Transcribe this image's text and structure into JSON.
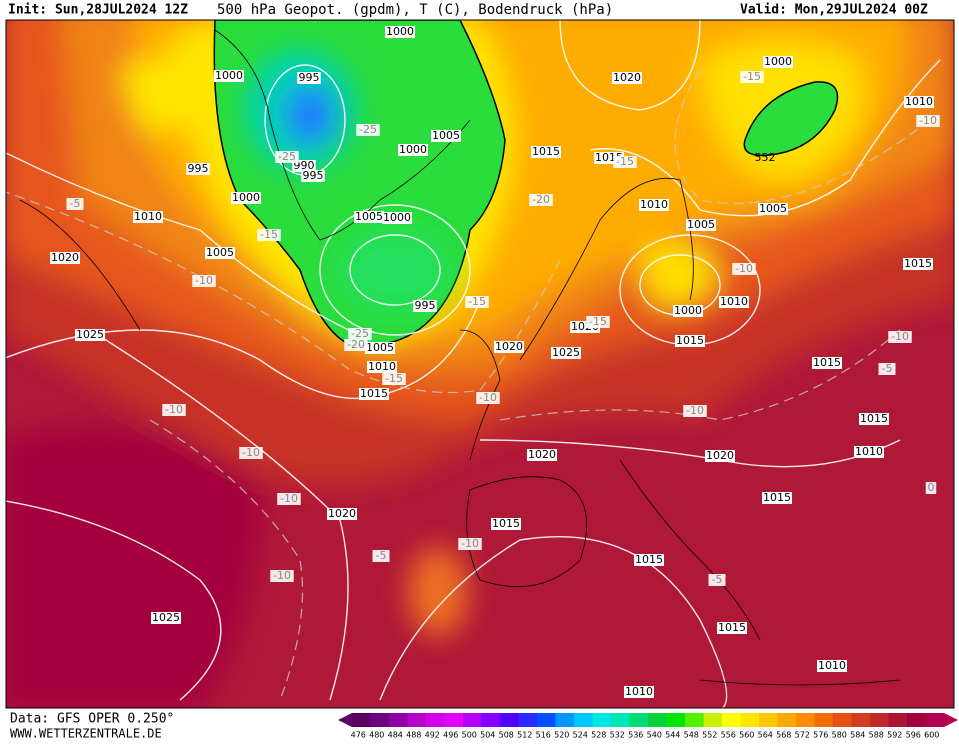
{
  "header": {
    "init": "Init: Sun,28JUL2024 12Z",
    "title": "500 hPa Geopot. (gpdm), T (C), Bodendruck (hPa)",
    "valid": "Valid: Mon,29JUL2024 00Z"
  },
  "isobar_labels": [
    "1000",
    "1000",
    "995",
    "1020",
    "1000",
    "1010",
    "1005",
    "1000",
    "1015",
    "1015",
    "995",
    "990",
    "995",
    "1000",
    "1010",
    "1005",
    "1000",
    "1010",
    "1005",
    "1005",
    "1005",
    "1020",
    "1015",
    "1010",
    "1000",
    "995",
    "1020",
    "1015",
    "1025",
    "1005",
    "1020",
    "1025",
    "1010",
    "1015",
    "1015",
    "1015",
    "1010",
    "1020",
    "1020",
    "1015",
    "1020",
    "1015",
    "1015",
    "1025",
    "1015",
    "1010",
    "1010"
  ],
  "geopotential_labels": [
    "552"
  ],
  "temperature_labels": [
    "-15",
    "-10",
    "-25",
    "-25",
    "-15",
    "-20",
    "-5",
    "-15",
    "-10",
    "-10",
    "-15",
    "-15",
    "-25",
    "-20",
    "-10",
    "-15",
    "-5",
    "-10",
    "-10",
    "-10",
    "-10",
    "-10",
    "-10",
    "-5",
    "-10",
    "-5",
    "0"
  ],
  "colorbar": {
    "labels": [
      "476",
      "480",
      "484",
      "488",
      "492",
      "496",
      "500",
      "504",
      "508",
      "512",
      "516",
      "520",
      "524",
      "528",
      "532",
      "536",
      "540",
      "544",
      "548",
      "552",
      "556",
      "560",
      "564",
      "568",
      "572",
      "576",
      "580",
      "584",
      "588",
      "592",
      "596",
      "600"
    ],
    "colors": [
      "#5a0064",
      "#6e0082",
      "#8c00a0",
      "#b400c8",
      "#d200e6",
      "#e600ff",
      "#b400ff",
      "#8200ff",
      "#5000ff",
      "#2828ff",
      "#0050ff",
      "#0096ff",
      "#00c8ff",
      "#00e6e6",
      "#00e6b4",
      "#00dc78",
      "#00d23c",
      "#00e600",
      "#50f000",
      "#c8f000",
      "#ffff00",
      "#ffe600",
      "#ffc800",
      "#ffaa00",
      "#ff8c00",
      "#f06e00",
      "#e65014",
      "#d23c1e",
      "#be2828",
      "#aa1432",
      "#a0003c",
      "#b40050"
    ]
  },
  "footer": {
    "data": "Data: GFS OPER 0.250°",
    "site": "WWW.WETTERZENTRALE.DE"
  }
}
